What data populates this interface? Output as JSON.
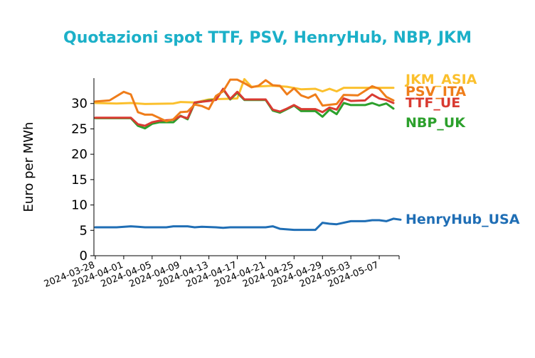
{
  "chart_data": {
    "type": "line",
    "title": "Quotazioni spot TTF, PSV, HenryHub, NBP, JKM",
    "xlabel": "",
    "ylabel": "Euro per MWh",
    "ylim": [
      0,
      35
    ],
    "xlim": [
      "2024-03-28",
      "2024-05-10"
    ],
    "grid": false,
    "legend": "right, labels at line ends",
    "yticks": [
      0,
      5,
      10,
      15,
      20,
      25,
      30
    ],
    "xticks": [
      "2024-03-28",
      "2024-04-01",
      "2024-04-05",
      "2024-04-09",
      "2024-04-13",
      "2024-04-17",
      "2024-04-21",
      "2024-04-25",
      "2024-04-29",
      "2024-05-03",
      "2024-05-07"
    ],
    "title_color": "#1cb0c8",
    "series": [
      {
        "name": "JKM_ASIA",
        "color": "#fbc02d",
        "points": [
          [
            "2024-03-28",
            30.1
          ],
          [
            "2024-03-31",
            30.0
          ],
          [
            "2024-04-02",
            30.1
          ],
          [
            "2024-04-04",
            29.9
          ],
          [
            "2024-04-08",
            30.0
          ],
          [
            "2024-04-09",
            30.3
          ],
          [
            "2024-04-11",
            30.2
          ],
          [
            "2024-04-13",
            30.8
          ],
          [
            "2024-04-15",
            30.9
          ],
          [
            "2024-04-17",
            31.0
          ],
          [
            "2024-04-18",
            34.8
          ],
          [
            "2024-04-19",
            33.3
          ],
          [
            "2024-04-22",
            33.5
          ],
          [
            "2024-04-24",
            33.3
          ],
          [
            "2024-04-26",
            32.8
          ],
          [
            "2024-04-28",
            32.9
          ],
          [
            "2024-04-29",
            32.4
          ],
          [
            "2024-04-30",
            32.9
          ],
          [
            "2024-05-01",
            32.4
          ],
          [
            "2024-05-02",
            33.1
          ],
          [
            "2024-05-05",
            33.1
          ],
          [
            "2024-05-07",
            33.1
          ],
          [
            "2024-05-09",
            33.1
          ]
        ]
      },
      {
        "name": "PSV_ITA",
        "color": "#ef7d1a",
        "points": [
          [
            "2024-03-28",
            30.4
          ],
          [
            "2024-03-30",
            30.6
          ],
          [
            "2024-04-01",
            32.3
          ],
          [
            "2024-04-02",
            31.8
          ],
          [
            "2024-04-03",
            28.3
          ],
          [
            "2024-04-04",
            27.8
          ],
          [
            "2024-04-05",
            27.8
          ],
          [
            "2024-04-07",
            26.5
          ],
          [
            "2024-04-08",
            26.9
          ],
          [
            "2024-04-09",
            28.3
          ],
          [
            "2024-04-10",
            28.4
          ],
          [
            "2024-04-11",
            29.8
          ],
          [
            "2024-04-12",
            29.5
          ],
          [
            "2024-04-13",
            28.9
          ],
          [
            "2024-04-14",
            31.5
          ],
          [
            "2024-04-15",
            32.4
          ],
          [
            "2024-04-16",
            34.7
          ],
          [
            "2024-04-17",
            34.7
          ],
          [
            "2024-04-18",
            34.0
          ],
          [
            "2024-04-19",
            33.2
          ],
          [
            "2024-04-20",
            33.5
          ],
          [
            "2024-04-21",
            34.6
          ],
          [
            "2024-04-22",
            33.6
          ],
          [
            "2024-04-23",
            33.5
          ],
          [
            "2024-04-24",
            31.8
          ],
          [
            "2024-04-25",
            33.0
          ],
          [
            "2024-04-26",
            31.6
          ],
          [
            "2024-04-27",
            31.1
          ],
          [
            "2024-04-28",
            31.8
          ],
          [
            "2024-04-29",
            29.6
          ],
          [
            "2024-05-01",
            29.9
          ],
          [
            "2024-05-02",
            31.7
          ],
          [
            "2024-05-04",
            31.6
          ],
          [
            "2024-05-06",
            33.4
          ],
          [
            "2024-05-07",
            32.9
          ],
          [
            "2024-05-08",
            31.3
          ],
          [
            "2024-05-09",
            30.6
          ]
        ]
      },
      {
        "name": "TTF_UE",
        "color": "#d93b32",
        "points": [
          [
            "2024-03-28",
            27.2
          ],
          [
            "2024-04-02",
            27.2
          ],
          [
            "2024-04-03",
            25.9
          ],
          [
            "2024-04-04",
            25.6
          ],
          [
            "2024-04-05",
            26.3
          ],
          [
            "2024-04-06",
            26.6
          ],
          [
            "2024-04-08",
            26.8
          ],
          [
            "2024-04-09",
            27.5
          ],
          [
            "2024-04-10",
            27.1
          ],
          [
            "2024-04-11",
            30.2
          ],
          [
            "2024-04-13",
            30.5
          ],
          [
            "2024-04-14",
            30.7
          ],
          [
            "2024-04-15",
            32.9
          ],
          [
            "2024-04-16",
            30.9
          ],
          [
            "2024-04-17",
            32.3
          ],
          [
            "2024-04-18",
            30.8
          ],
          [
            "2024-04-20",
            30.8
          ],
          [
            "2024-04-21",
            30.8
          ],
          [
            "2024-04-22",
            28.8
          ],
          [
            "2024-04-23",
            28.4
          ],
          [
            "2024-04-24",
            29.0
          ],
          [
            "2024-04-25",
            29.7
          ],
          [
            "2024-04-26",
            28.9
          ],
          [
            "2024-04-28",
            28.9
          ],
          [
            "2024-04-29",
            28.3
          ],
          [
            "2024-04-30",
            29.2
          ],
          [
            "2024-05-01",
            28.8
          ],
          [
            "2024-05-02",
            31.0
          ],
          [
            "2024-05-03",
            30.5
          ],
          [
            "2024-05-05",
            30.6
          ],
          [
            "2024-05-06",
            31.8
          ],
          [
            "2024-05-07",
            31.0
          ],
          [
            "2024-05-08",
            30.7
          ],
          [
            "2024-05-09",
            30.1
          ]
        ]
      },
      {
        "name": "NBP_UK",
        "color": "#2ca02c",
        "points": [
          [
            "2024-03-28",
            27.1
          ],
          [
            "2024-04-02",
            27.1
          ],
          [
            "2024-04-03",
            25.6
          ],
          [
            "2024-04-04",
            25.1
          ],
          [
            "2024-04-05",
            26.0
          ],
          [
            "2024-04-06",
            26.3
          ],
          [
            "2024-04-08",
            26.3
          ],
          [
            "2024-04-09",
            27.6
          ],
          [
            "2024-04-10",
            26.9
          ],
          [
            "2024-04-11",
            30.1
          ],
          [
            "2024-04-13",
            30.6
          ],
          [
            "2024-04-14",
            30.8
          ],
          [
            "2024-04-15",
            32.8
          ],
          [
            "2024-04-16",
            30.8
          ],
          [
            "2024-04-17",
            32.1
          ],
          [
            "2024-04-18",
            30.7
          ],
          [
            "2024-04-21",
            30.7
          ],
          [
            "2024-04-22",
            28.6
          ],
          [
            "2024-04-23",
            28.2
          ],
          [
            "2024-04-24",
            28.9
          ],
          [
            "2024-04-25",
            29.6
          ],
          [
            "2024-04-26",
            28.5
          ],
          [
            "2024-04-28",
            28.5
          ],
          [
            "2024-04-29",
            27.4
          ],
          [
            "2024-04-30",
            28.8
          ],
          [
            "2024-05-01",
            27.9
          ],
          [
            "2024-05-02",
            30.1
          ],
          [
            "2024-05-03",
            29.7
          ],
          [
            "2024-05-05",
            29.7
          ],
          [
            "2024-05-06",
            30.1
          ],
          [
            "2024-05-07",
            29.6
          ],
          [
            "2024-05-08",
            30.0
          ],
          [
            "2024-05-09",
            29.0
          ]
        ]
      },
      {
        "name": "HenryHub_USA",
        "color": "#1f6eb5",
        "points": [
          [
            "2024-03-28",
            5.6
          ],
          [
            "2024-03-31",
            5.6
          ],
          [
            "2024-04-02",
            5.8
          ],
          [
            "2024-04-03",
            5.7
          ],
          [
            "2024-04-04",
            5.6
          ],
          [
            "2024-04-06",
            5.6
          ],
          [
            "2024-04-07",
            5.6
          ],
          [
            "2024-04-08",
            5.8
          ],
          [
            "2024-04-10",
            5.8
          ],
          [
            "2024-04-11",
            5.6
          ],
          [
            "2024-04-12",
            5.7
          ],
          [
            "2024-04-14",
            5.6
          ],
          [
            "2024-04-15",
            5.5
          ],
          [
            "2024-04-16",
            5.6
          ],
          [
            "2024-04-19",
            5.6
          ],
          [
            "2024-04-21",
            5.6
          ],
          [
            "2024-04-22",
            5.8
          ],
          [
            "2024-04-23",
            5.3
          ],
          [
            "2024-04-24",
            5.2
          ],
          [
            "2024-04-25",
            5.1
          ],
          [
            "2024-04-28",
            5.1
          ],
          [
            "2024-04-29",
            6.5
          ],
          [
            "2024-04-30",
            6.3
          ],
          [
            "2024-05-01",
            6.2
          ],
          [
            "2024-05-03",
            6.8
          ],
          [
            "2024-05-05",
            6.8
          ],
          [
            "2024-05-06",
            7.0
          ],
          [
            "2024-05-07",
            7.0
          ],
          [
            "2024-05-08",
            6.8
          ],
          [
            "2024-05-09",
            7.3
          ],
          [
            "2024-05-10",
            7.1
          ]
        ]
      }
    ]
  }
}
